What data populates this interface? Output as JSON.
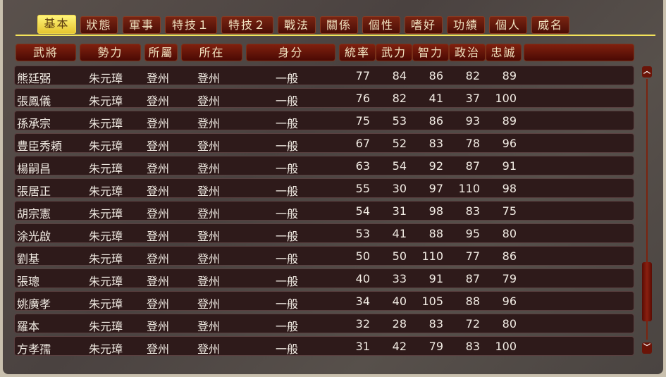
{
  "tabs": [
    "基本",
    "狀態",
    "軍事",
    "特技１",
    "特技２",
    "戰法",
    "關係",
    "個性",
    "嗜好",
    "功績",
    "個人",
    "威名"
  ],
  "active_tab": "基本",
  "columns": [
    "武將",
    "勢力",
    "所屬",
    "所在",
    "身分",
    "統率",
    "武力",
    "智力",
    "政治",
    "忠誠",
    ""
  ],
  "rows": [
    [
      "熊廷弼",
      "朱元璋",
      "登州",
      "登州",
      "一般",
      "77",
      "84",
      "86",
      "82",
      "89"
    ],
    [
      "張鳳儀",
      "朱元璋",
      "登州",
      "登州",
      "一般",
      "76",
      "82",
      "41",
      "37",
      "100"
    ],
    [
      "孫承宗",
      "朱元璋",
      "登州",
      "登州",
      "一般",
      "75",
      "53",
      "86",
      "93",
      "89"
    ],
    [
      "豊臣秀頼",
      "朱元璋",
      "登州",
      "登州",
      "一般",
      "67",
      "52",
      "83",
      "78",
      "96"
    ],
    [
      "楊嗣昌",
      "朱元璋",
      "登州",
      "登州",
      "一般",
      "63",
      "54",
      "92",
      "87",
      "91"
    ],
    [
      "張居正",
      "朱元璋",
      "登州",
      "登州",
      "一般",
      "55",
      "30",
      "97",
      "110",
      "98"
    ],
    [
      "胡宗憲",
      "朱元璋",
      "登州",
      "登州",
      "一般",
      "54",
      "31",
      "98",
      "83",
      "75"
    ],
    [
      "涂光啟",
      "朱元璋",
      "登州",
      "登州",
      "一般",
      "53",
      "41",
      "88",
      "95",
      "80"
    ],
    [
      "劉基",
      "朱元璋",
      "登州",
      "登州",
      "一般",
      "50",
      "50",
      "110",
      "77",
      "86"
    ],
    [
      "張璁",
      "朱元璋",
      "登州",
      "登州",
      "一般",
      "40",
      "33",
      "91",
      "87",
      "79"
    ],
    [
      "姚廣孝",
      "朱元璋",
      "登州",
      "登州",
      "一般",
      "34",
      "40",
      "105",
      "88",
      "96"
    ],
    [
      "羅本",
      "朱元璋",
      "登州",
      "登州",
      "一般",
      "32",
      "28",
      "83",
      "72",
      "80"
    ],
    [
      "方孝孺",
      "朱元璋",
      "登州",
      "登州",
      "一般",
      "31",
      "42",
      "79",
      "83",
      "100"
    ]
  ],
  "scrollbar": {
    "up_icon": "chevron-up-icon",
    "down_icon": "chevron-down-icon",
    "position_percent": 75
  },
  "colors": {
    "active_tab": "#f0d84a",
    "tab_bg": "#6a1a0c",
    "row_bg": "#2e1a1a",
    "tab_line": "#f4e45a"
  }
}
